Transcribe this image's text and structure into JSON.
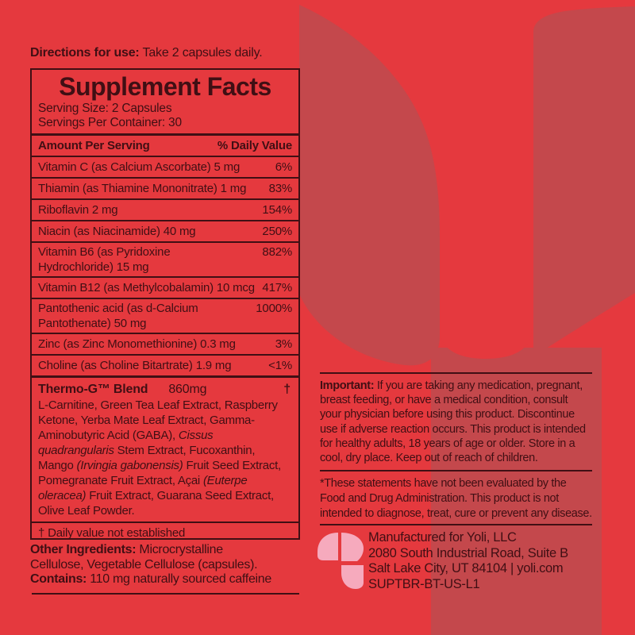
{
  "colors": {
    "background": "#e5393e",
    "watermark": "#c4484c",
    "ink": "#400f14",
    "logo_pink": "#f6aabd"
  },
  "directions": {
    "bold": "Directions for use:",
    "rest": " Take 2 capsules daily."
  },
  "panel": {
    "title": "Supplement Facts",
    "serving_size": "Serving Size: 2 Capsules",
    "servings_per_container": "Servings Per Container: 30",
    "header": {
      "left": "Amount Per Serving",
      "right": "% Daily Value"
    },
    "rows": [
      {
        "label_lines": [
          "Vitamin C (as Calcium Ascorbate) 5 mg"
        ],
        "value": "6%"
      },
      {
        "label_lines": [
          "Thiamin (as Thiamine Mononitrate) 1 mg"
        ],
        "value": "83%"
      },
      {
        "label_lines": [
          "Riboflavin 2 mg"
        ],
        "value": "154%"
      },
      {
        "label_lines": [
          "Niacin (as Niacinamide) 40 mg"
        ],
        "value": "250%"
      },
      {
        "label_lines": [
          "Vitamin B6 (as Pyridoxine",
          "Hydrochloride)  15 mg"
        ],
        "value": "882%"
      },
      {
        "label_lines": [
          "Vitamin B12 (as Methylcobalamin) 10 mcg"
        ],
        "value": "417%"
      },
      {
        "label_lines": [
          "Pantothenic acid (as d-Calcium",
          "Pantothenate) 50 mg"
        ],
        "value": "1000%"
      },
      {
        "label_lines": [
          "Zinc (as Zinc Monomethionine) 0.3 mg"
        ],
        "value": "3%"
      },
      {
        "label_lines": [
          "Choline (as Choline Bitartrate) 1.9 mg"
        ],
        "value": "<1%"
      }
    ],
    "blend": {
      "name": "Thermo-G™ Blend",
      "amount": "860mg",
      "dagger": "†",
      "description": [
        {
          "text": "L-Carnitine, Green Tea Leaf Extract, Raspberry Ketone, Yerba Mate Leaf Extract, Gamma-Aminobutyric Acid (GABA), ",
          "italic": false
        },
        {
          "text": "Cissus quadrangularis",
          "italic": true
        },
        {
          "text": " Stem Extract, Fucoxanthin, Mango ",
          "italic": false
        },
        {
          "text": "(Irvingia gabonensis)",
          "italic": true
        },
        {
          "text": " Fruit Seed Extract, Pomegranate Fruit Extract, Açai ",
          "italic": false
        },
        {
          "text": "(Euterpe oleracea)",
          "italic": true
        },
        {
          "text": " Fruit Extract, Guarana Seed Extract, Olive Leaf Powder.",
          "italic": false
        }
      ]
    },
    "footnote": "† Daily value not established"
  },
  "other_ingredients": {
    "line1_bold": "Other Ingredients:",
    "line1_rest": " Microcrystalline",
    "line2": "Cellulose, Vegetable Cellulose (capsules).",
    "line3_bold": "Contains:",
    "line3_rest": " 110 mg naturally sourced caffeine"
  },
  "right_column": {
    "important": {
      "bold_prefix": "Important:",
      "lines": [
        "Important: If you are taking any medication, pregnant,",
        "breast feeding, or have a medical condition, consult",
        "your physician before using this product. Discontinue",
        "use if adverse reaction occurs. This product is intended",
        "for healthy adults, 18 years of age or older. Store in a",
        "cool, dry place. Keep out of reach of children."
      ]
    },
    "fda_disclaimer": {
      "lines": [
        "*These statements have not been evaluated by the",
        "Food and Drug Administration. This product is not",
        "intended to diagnose, treat, cure or prevent any disease."
      ]
    },
    "manufacturer": {
      "lines": [
        "Manufactured for Yoli, LLC",
        "2080 South Industrial Road, Suite B",
        "Salt Lake City, UT 84104 | yoli.com",
        "SUPTBR-BT-US-L1"
      ]
    }
  }
}
